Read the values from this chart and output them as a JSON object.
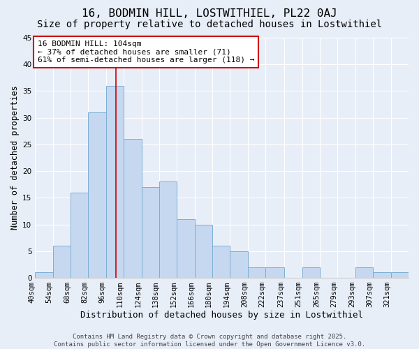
{
  "title": "16, BODMIN HILL, LOSTWITHIEL, PL22 0AJ",
  "subtitle": "Size of property relative to detached houses in Lostwithiel",
  "xlabel": "Distribution of detached houses by size in Lostwithiel",
  "ylabel": "Number of detached properties",
  "bar_color": "#c5d8f0",
  "bar_edge_color": "#7bafd4",
  "background_color": "#e8eef8",
  "grid_color": "#ffffff",
  "bin_labels": [
    "40sqm",
    "54sqm",
    "68sqm",
    "82sqm",
    "96sqm",
    "110sqm",
    "124sqm",
    "138sqm",
    "152sqm",
    "166sqm",
    "180sqm",
    "194sqm",
    "208sqm",
    "222sqm",
    "237sqm",
    "251sqm",
    "265sqm",
    "279sqm",
    "293sqm",
    "307sqm",
    "321sqm"
  ],
  "bin_edges": [
    40,
    54,
    68,
    82,
    96,
    110,
    124,
    138,
    152,
    166,
    180,
    194,
    208,
    222,
    237,
    251,
    265,
    279,
    293,
    307,
    321,
    335
  ],
  "counts": [
    1,
    6,
    16,
    31,
    36,
    26,
    17,
    18,
    11,
    10,
    6,
    5,
    2,
    2,
    0,
    2,
    0,
    0,
    2,
    1,
    1
  ],
  "vline_x": 104,
  "vline_color": "#cc0000",
  "annotation_text": "16 BODMIN HILL: 104sqm\n← 37% of detached houses are smaller (71)\n61% of semi-detached houses are larger (118) →",
  "ylim": [
    0,
    45
  ],
  "yticks": [
    0,
    5,
    10,
    15,
    20,
    25,
    30,
    35,
    40,
    45
  ],
  "footnote": "Contains HM Land Registry data © Crown copyright and database right 2025.\nContains public sector information licensed under the Open Government Licence v3.0.",
  "title_fontsize": 11.5,
  "subtitle_fontsize": 10,
  "xlabel_fontsize": 9,
  "ylabel_fontsize": 8.5,
  "tick_fontsize": 7.5,
  "annotation_fontsize": 8,
  "footnote_fontsize": 6.5
}
